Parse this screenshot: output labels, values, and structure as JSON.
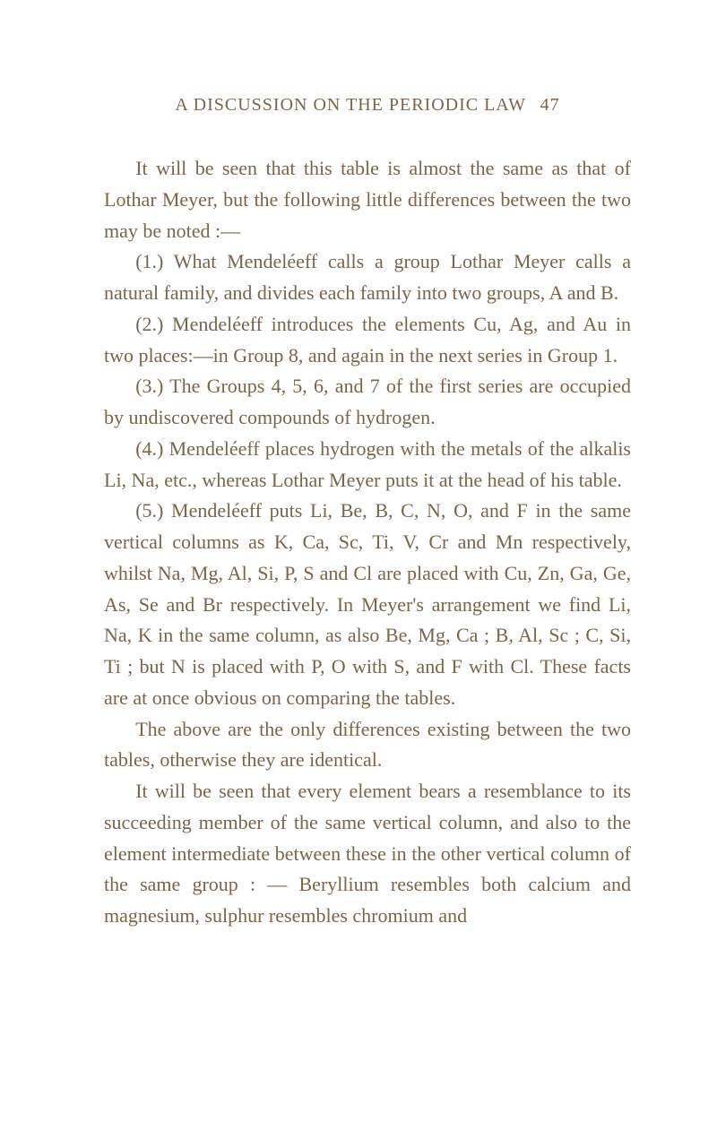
{
  "header": {
    "title": "A DISCUSSION ON THE PERIODIC LAW",
    "page_number": "47"
  },
  "paragraphs": [
    "It will be seen that this table is almost the same as that of Lothar Meyer, but the following little differences between the two may be noted :—",
    "(1.) What Mendeléeff calls a group Lothar Meyer calls a natural family, and divides each family into two groups, A and B.",
    "(2.) Mendeléeff introduces the elements Cu, Ag, and Au in two places:—in Group 8, and again in the next series in Group 1.",
    "(3.) The Groups 4, 5, 6, and 7 of the first series are occupied by undiscovered compounds of hydrogen.",
    "(4.) Mendeléeff places hydrogen with the metals of the alkalis Li, Na, etc., whereas Lothar Meyer puts it at the head of his table.",
    "(5.) Mendeléeff puts Li, Be, B, C, N, O, and F in the same vertical columns as K, Ca, Sc, Ti, V, Cr and Mn respectively, whilst Na, Mg, Al, Si, P, S and Cl are placed with Cu, Zn, Ga, Ge, As, Se and Br respectively. In Meyer's arrangement we find Li, Na, K in the same column, as also Be, Mg, Ca ; B, Al, Sc ; C, Si, Ti ; but N is placed with P, O with S, and F with Cl. These facts are at once obvious on comparing the tables.",
    "The above are the only differences existing be­tween the two tables, otherwise they are identical.",
    "It will be seen that every element bears a resem­blance to its succeeding member of the same vertical column, and also to the element intermediate between these in the other vertical column of the same group : — Beryllium resembles both calcium and magnesium, sulphur resembles chromium and"
  ],
  "colors": {
    "text": "#7a6548",
    "background": "#ffffff"
  },
  "typography": {
    "header_fontsize": 20,
    "body_fontsize": 22,
    "line_height": 1.58,
    "font_family": "Century Schoolbook"
  }
}
